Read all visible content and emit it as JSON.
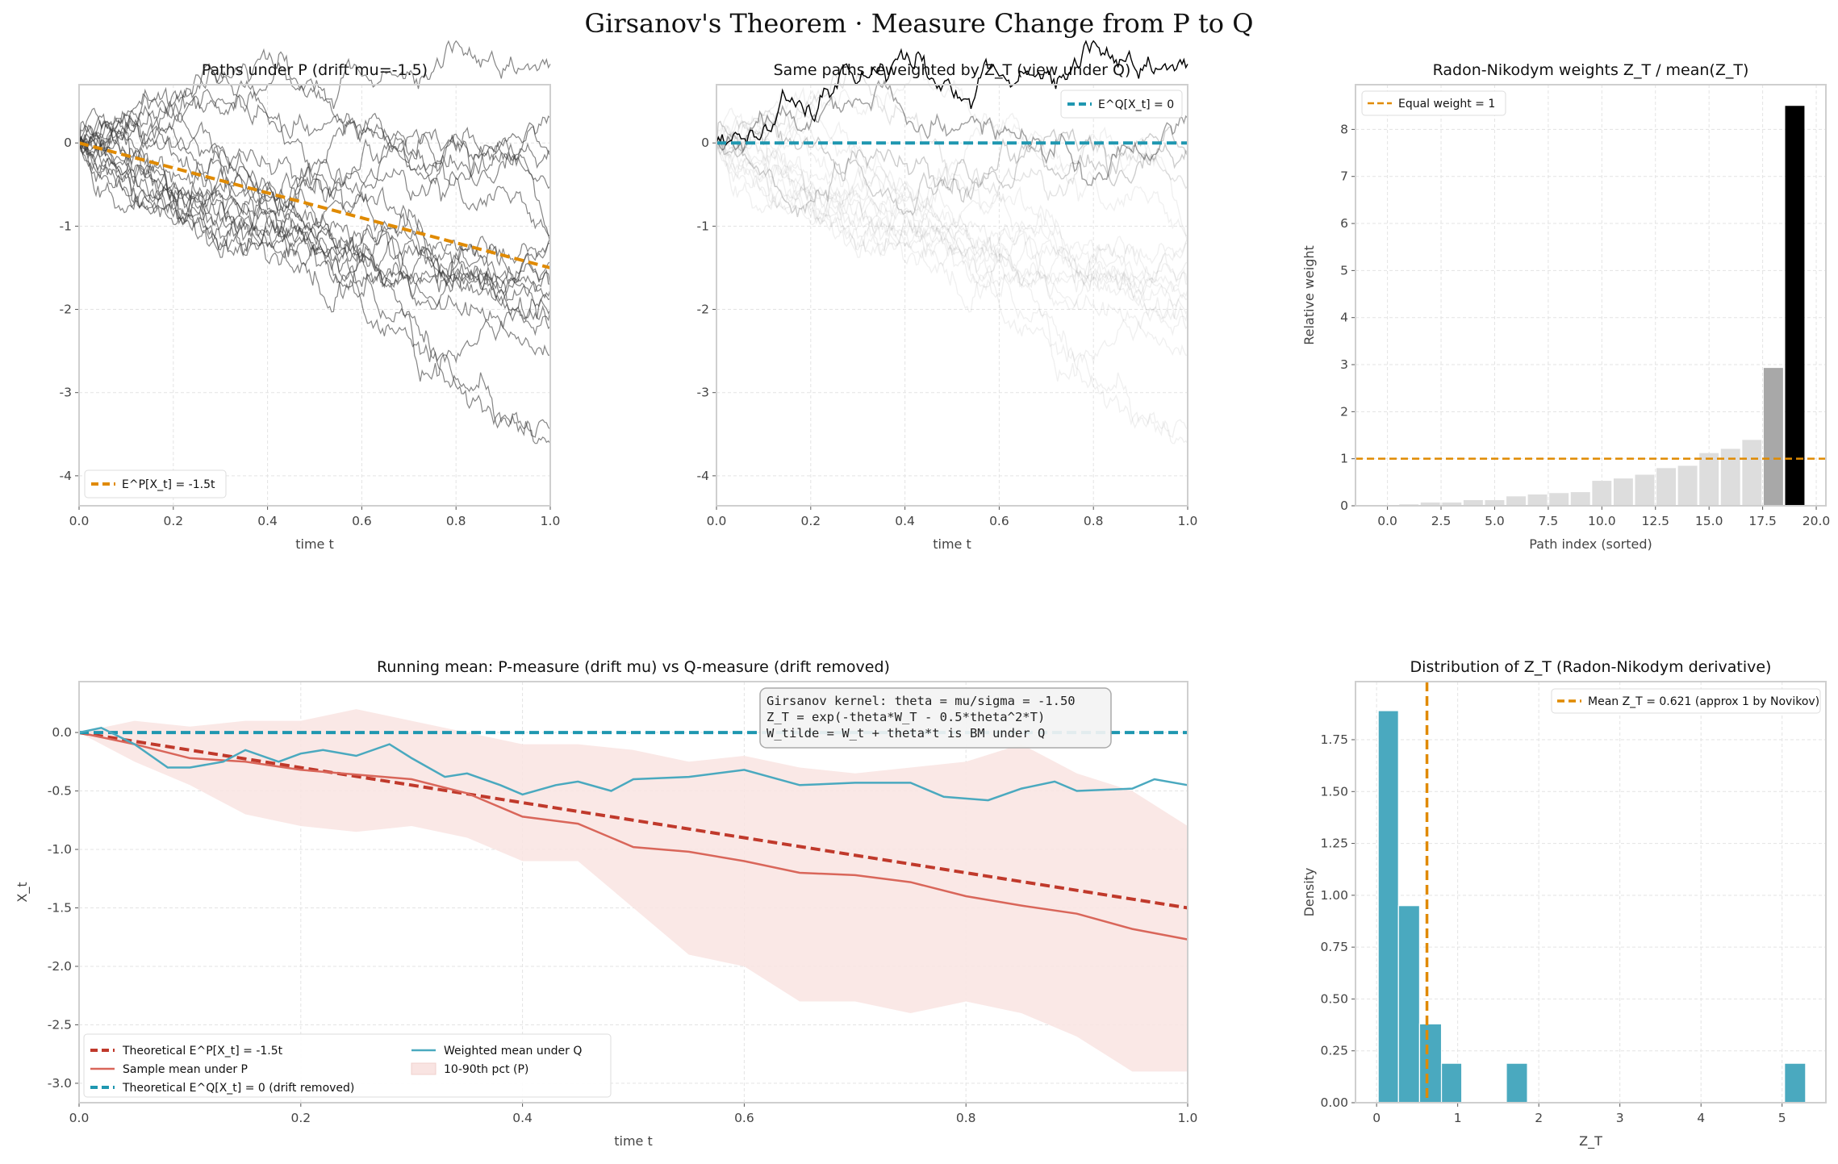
{
  "suptitle": "Girsanov's Theorem  ·  Measure Change from  P  to  Q",
  "colors": {
    "orange": "#e08a00",
    "teal": "#1f97b0",
    "red": "#c0392b",
    "salmon": "#d9665a",
    "teal_light": "#4aa9bf",
    "band": "#f9e4e2",
    "bar_light": "#dddddd",
    "bar_mid": "#a8a8a8",
    "bar_top": "#000000",
    "hist": "#4aa9bf"
  },
  "chart_data": [
    {
      "type": "line",
      "title": "Paths under P  (drift mu=-1.5)",
      "xlabel": "time t",
      "ylabel": "",
      "xlim": [
        0,
        1
      ],
      "ylim": [
        -4.36,
        0.7
      ],
      "xticks": [
        "0.0",
        "0.2",
        "0.4",
        "0.6",
        "0.8",
        "1.0"
      ],
      "yticks": [
        "0",
        "-1",
        "-2",
        "-3",
        "-4"
      ],
      "grid": true,
      "n_paths": 20,
      "drift": -1.5,
      "sigma": 1.0,
      "series": [
        {
          "name": "E^P[X_t] = -1.5t",
          "x": [
            0,
            1
          ],
          "y": [
            0,
            -1.5
          ],
          "style": "dashed"
        }
      ],
      "legend": "lower-left"
    },
    {
      "type": "line",
      "title": "Same paths reweighted by Z_T  (view under Q)",
      "xlabel": "time t",
      "ylabel": "",
      "xlim": [
        0,
        1
      ],
      "ylim": [
        -4.36,
        0.7
      ],
      "xticks": [
        "0.0",
        "0.2",
        "0.4",
        "0.6",
        "0.8",
        "1.0"
      ],
      "yticks": [
        "0",
        "-1",
        "-2",
        "-3",
        "-4"
      ],
      "grid": true,
      "series": [
        {
          "name": "E^Q[X_t] = 0",
          "x": [
            0,
            1
          ],
          "y": [
            0,
            0
          ],
          "style": "dashed"
        }
      ],
      "legend": "upper-right"
    },
    {
      "type": "bar",
      "title": "Radon-Nikodym weights  Z_T / mean(Z_T)",
      "xlabel": "Path index (sorted)",
      "ylabel": "Relative weight",
      "xlim": [
        -1.49,
        20.45
      ],
      "ylim": [
        0,
        8.95
      ],
      "xticks": [
        "0.0",
        "2.5",
        "5.0",
        "7.5",
        "10.0",
        "12.5",
        "15.0",
        "17.5",
        "20.0"
      ],
      "yticks": [
        "0",
        "1",
        "2",
        "3",
        "4",
        "5",
        "6",
        "7",
        "8"
      ],
      "categories": [
        0,
        1,
        2,
        3,
        4,
        5,
        6,
        7,
        8,
        9,
        10,
        11,
        12,
        13,
        14,
        15,
        16,
        17,
        18,
        19
      ],
      "values": [
        0.01,
        0.03,
        0.07,
        0.07,
        0.12,
        0.12,
        0.2,
        0.24,
        0.27,
        0.29,
        0.53,
        0.58,
        0.66,
        0.8,
        0.85,
        1.12,
        1.21,
        1.4,
        2.93,
        8.5
      ],
      "hline": {
        "name": "Equal weight = 1",
        "y": 1
      },
      "grid": true,
      "legend": "upper-left"
    },
    {
      "type": "line",
      "title": "Running mean: P-measure (drift mu) vs Q-measure (drift removed)",
      "xlabel": "time t",
      "ylabel": "X_t",
      "xlim": [
        0,
        1
      ],
      "ylim": [
        -3.166,
        0.435
      ],
      "xticks": [
        "0.0",
        "0.2",
        "0.4",
        "0.6",
        "0.8",
        "1.0"
      ],
      "yticks": [
        "0.0",
        "-0.5",
        "-1.0",
        "-1.5",
        "-2.0",
        "-2.5",
        "-3.0"
      ],
      "grid": true,
      "legend": "lower-left",
      "series": [
        {
          "name": "Theoretical E^P[X_t] = -1.5t",
          "x": [
            0,
            1
          ],
          "y": [
            0,
            -1.5
          ],
          "style": "dashed"
        },
        {
          "name": "Sample mean under P",
          "x": [
            0,
            0.05,
            0.1,
            0.15,
            0.2,
            0.25,
            0.3,
            0.35,
            0.4,
            0.45,
            0.5,
            0.55,
            0.6,
            0.65,
            0.7,
            0.75,
            0.8,
            0.85,
            0.9,
            0.95,
            1.0
          ],
          "y": [
            0,
            -0.1,
            -0.22,
            -0.25,
            -0.32,
            -0.36,
            -0.4,
            -0.52,
            -0.72,
            -0.78,
            -0.98,
            -1.02,
            -1.1,
            -1.2,
            -1.22,
            -1.28,
            -1.4,
            -1.48,
            -1.55,
            -1.68,
            -1.77
          ]
        },
        {
          "name": "Theoretical E^Q[X_t] = 0  (drift removed)",
          "x": [
            0,
            1
          ],
          "y": [
            0,
            0
          ],
          "style": "dashed"
        },
        {
          "name": "Weighted mean under Q",
          "x": [
            0,
            0.02,
            0.05,
            0.08,
            0.1,
            0.13,
            0.15,
            0.18,
            0.2,
            0.22,
            0.25,
            0.28,
            0.3,
            0.33,
            0.35,
            0.38,
            0.4,
            0.43,
            0.45,
            0.48,
            0.5,
            0.55,
            0.6,
            0.65,
            0.7,
            0.75,
            0.78,
            0.82,
            0.85,
            0.88,
            0.9,
            0.95,
            0.97,
            1.0
          ],
          "y": [
            0,
            0.04,
            -0.1,
            -0.3,
            -0.3,
            -0.25,
            -0.15,
            -0.25,
            -0.18,
            -0.15,
            -0.2,
            -0.1,
            -0.22,
            -0.38,
            -0.35,
            -0.45,
            -0.53,
            -0.45,
            -0.42,
            -0.5,
            -0.4,
            -0.38,
            -0.32,
            -0.45,
            -0.43,
            -0.43,
            -0.55,
            -0.58,
            -0.48,
            -0.42,
            -0.5,
            -0.48,
            -0.4,
            -0.45
          ]
        },
        {
          "name": "10-90th pct (P)",
          "x": [
            0,
            0.05,
            0.1,
            0.15,
            0.2,
            0.25,
            0.3,
            0.35,
            0.4,
            0.45,
            0.5,
            0.55,
            0.6,
            0.65,
            0.7,
            0.75,
            0.8,
            0.85,
            0.9,
            0.95,
            1.0
          ],
          "upper": [
            0,
            0.1,
            0.05,
            0.1,
            0.1,
            0.2,
            0.1,
            0.0,
            -0.1,
            -0.1,
            -0.15,
            -0.25,
            -0.2,
            -0.3,
            -0.35,
            -0.3,
            -0.25,
            -0.1,
            -0.35,
            -0.5,
            -0.8
          ],
          "lower": [
            0,
            -0.25,
            -0.45,
            -0.7,
            -0.8,
            -0.85,
            -0.8,
            -0.9,
            -1.1,
            -1.1,
            -1.5,
            -1.9,
            -2.0,
            -2.3,
            -2.3,
            -2.4,
            -2.3,
            -2.4,
            -2.6,
            -2.9,
            -2.9
          ]
        }
      ],
      "annotation": [
        "Girsanov kernel:  theta = mu/sigma = -1.50",
        "Z_T = exp(-theta*W_T - 0.5*theta^2*T)",
        "W_tilde = W_t + theta*t  is BM under Q"
      ]
    },
    {
      "type": "bar",
      "title": "Distribution of Z_T  (Radon-Nikodym derivative)",
      "xlabel": "Z_T",
      "ylabel": "Density",
      "xlim": [
        -0.26,
        5.54
      ],
      "ylim": [
        0,
        2.03
      ],
      "xticks": [
        "0",
        "1",
        "2",
        "3",
        "4",
        "5"
      ],
      "yticks": [
        "0.00",
        "0.25",
        "0.50",
        "0.75",
        "1.00",
        "1.25",
        "1.50",
        "1.75"
      ],
      "bins": [
        [
          0.02,
          0.27
        ],
        [
          0.27,
          0.53
        ],
        [
          0.53,
          0.8
        ],
        [
          0.8,
          1.05
        ],
        [
          1.6,
          1.86
        ],
        [
          5.03,
          5.29
        ]
      ],
      "values": [
        1.89,
        0.95,
        0.38,
        0.19,
        0.19,
        0.19
      ],
      "vline": {
        "name": "Mean Z_T = 0.621  (approx 1 by Novikov)",
        "x": 0.621
      },
      "grid": true,
      "legend": "upper-right"
    }
  ]
}
